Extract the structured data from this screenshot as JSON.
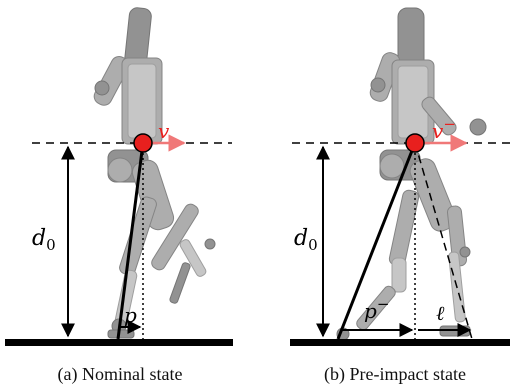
{
  "panels": [
    {
      "caption": "(a) Nominal state",
      "velocity_label": "v",
      "height_label": "d",
      "height_subscript": "0",
      "step_label": "p"
    },
    {
      "caption": "(b) Pre-impact state",
      "velocity_label": "v",
      "velocity_superscript": "−",
      "height_label": "d",
      "height_subscript": "0",
      "step_label": "p",
      "step_superscript": "−",
      "leg_length_label": "ℓ"
    }
  ],
  "colors": {
    "com_marker": "#e8201e",
    "velocity_arrow": "#f07878",
    "line": "#000000",
    "ground": "#000000",
    "robot": "#a9a9a9"
  }
}
